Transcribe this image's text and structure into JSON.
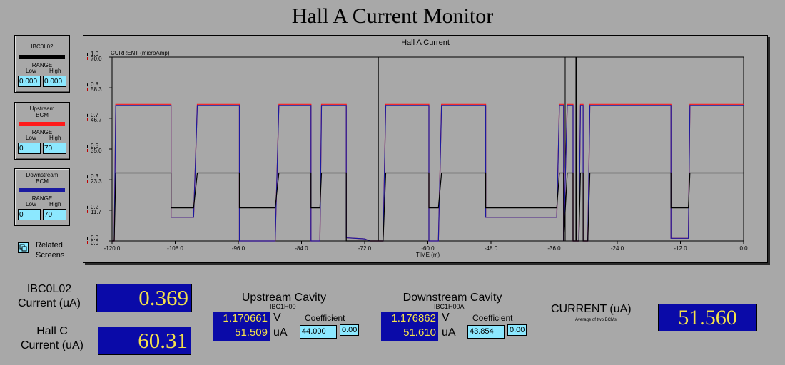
{
  "page": {
    "title": "Hall A Current Monitor"
  },
  "panels": [
    {
      "title1": "IBC0L02",
      "title2": "",
      "color": "#000000",
      "range_label": "RANGE",
      "low_label": "Low",
      "high_label": "High",
      "low": "0.000",
      "high": "0.000"
    },
    {
      "title1": "Upstream",
      "title2": "BCM",
      "color": "#ff1a1a",
      "range_label": "RANGE",
      "low_label": "Low",
      "high_label": "High",
      "low": "0",
      "high": "70"
    },
    {
      "title1": "Downstream",
      "title2": "BCM",
      "color": "#1a1aa0",
      "range_label": "RANGE",
      "low_label": "Low",
      "high_label": "High",
      "low": "0",
      "high": "70"
    }
  ],
  "related": {
    "label1": "Related",
    "label2": "Screens",
    "icon": "related-screens-icon"
  },
  "chart_data": {
    "type": "line",
    "title": "Hall A Current",
    "ylabel": "CURRENT (microAmp)",
    "xlabel": "TIME (m)",
    "xlim": [
      -120,
      0
    ],
    "x_ticks": [
      "-120.0",
      "-108.0",
      "-96.0",
      "-84.0",
      "-72.0",
      "-60.0",
      "-48.0",
      "-36.0",
      "-24.0",
      "-12.0",
      "0.0"
    ],
    "y_ticks_left": [
      "1.0",
      "0.8",
      "0.7",
      "0.5",
      "0.3",
      "0.2",
      "0.0"
    ],
    "y_ticks_right": [
      "70.0",
      "58.3",
      "46.7",
      "35.0",
      "23.3",
      "11.7",
      "0.0"
    ],
    "ylim_left": [
      0,
      1.0
    ],
    "ylim_right": [
      0,
      70
    ],
    "grid": false,
    "series": [
      {
        "color": "#ff1a1a",
        "axis": "right",
        "segments": [
          [
            [
              -120,
              0
            ],
            [
              -119.6,
              0
            ],
            [
              -119.3,
              52
            ],
            [
              -117,
              52
            ],
            [
              -108.8,
              52
            ],
            [
              -108.8,
              9
            ],
            [
              -104.5,
              9
            ],
            [
              -103.8,
              52
            ],
            [
              -95.8,
              52
            ],
            [
              -95.8,
              0
            ],
            [
              -89,
              0
            ],
            [
              -88.3,
              52
            ],
            [
              -82.2,
              52
            ],
            [
              -82.2,
              0
            ],
            [
              -80.5,
              0
            ],
            [
              -80.2,
              52
            ],
            [
              -75.5,
              52
            ],
            [
              -75.5,
              1.2
            ],
            [
              -72,
              0.8
            ],
            [
              -71,
              0
            ],
            [
              -68.5,
              0
            ],
            [
              -68,
              52
            ],
            [
              -59.8,
              52
            ],
            [
              -59.8,
              0
            ],
            [
              -58,
              0
            ],
            [
              -57.4,
              52
            ],
            [
              -49,
              52
            ],
            [
              -49,
              9
            ],
            [
              -35.5,
              9
            ],
            [
              -35,
              52
            ],
            [
              -34.2,
              52
            ],
            [
              -34.2,
              0
            ],
            [
              -33.5,
              52
            ],
            [
              -32.4,
              52
            ],
            [
              -32.4,
              0
            ],
            [
              -31.3,
              0
            ],
            [
              -31,
              52
            ],
            [
              -30.5,
              52
            ],
            [
              -30.5,
              0
            ],
            [
              -29.6,
              0
            ],
            [
              -29.2,
              52
            ],
            [
              -13.8,
              52
            ],
            [
              -13.8,
              1
            ],
            [
              -10.5,
              1
            ],
            [
              -10.2,
              52
            ],
            [
              0,
              52
            ]
          ]
        ]
      },
      {
        "color": "#1a1aa0",
        "axis": "right",
        "segments": [
          [
            [
              -120,
              0
            ],
            [
              -119.6,
              0
            ],
            [
              -119.3,
              51.6
            ],
            [
              -117,
              51.6
            ],
            [
              -108.8,
              51.6
            ],
            [
              -108.8,
              9
            ],
            [
              -104.5,
              9
            ],
            [
              -103.8,
              51.6
            ],
            [
              -95.8,
              51.6
            ],
            [
              -95.8,
              0
            ],
            [
              -89,
              0
            ],
            [
              -88.3,
              51.6
            ],
            [
              -82.2,
              51.6
            ],
            [
              -82.2,
              0
            ],
            [
              -80.5,
              0
            ],
            [
              -80.2,
              51.6
            ],
            [
              -75.5,
              51.6
            ],
            [
              -75.5,
              1.2
            ],
            [
              -72,
              0.8
            ],
            [
              -71,
              0
            ],
            [
              -68.5,
              0
            ],
            [
              -68,
              51.6
            ],
            [
              -59.8,
              51.6
            ],
            [
              -59.8,
              0
            ],
            [
              -58,
              0
            ],
            [
              -57.4,
              51.6
            ],
            [
              -49,
              51.6
            ],
            [
              -49,
              9
            ],
            [
              -35.5,
              9
            ],
            [
              -35,
              51.6
            ],
            [
              -34.2,
              51.6
            ],
            [
              -34.2,
              0
            ],
            [
              -33.5,
              51.6
            ],
            [
              -32.4,
              51.6
            ],
            [
              -32.4,
              0
            ],
            [
              -31.3,
              0
            ],
            [
              -31,
              51.6
            ],
            [
              -30.5,
              51.6
            ],
            [
              -30.5,
              0
            ],
            [
              -29.6,
              0
            ],
            [
              -29.2,
              51.6
            ],
            [
              -13.8,
              51.6
            ],
            [
              -13.8,
              1
            ],
            [
              -10.5,
              1
            ],
            [
              -10.2,
              51.6
            ],
            [
              0,
              51.6
            ]
          ]
        ]
      },
      {
        "color": "#000000",
        "axis": "left",
        "segments": [
          [
            [
              -120,
              0
            ],
            [
              -119.6,
              0
            ],
            [
              -119.3,
              0.37
            ],
            [
              -108.8,
              0.37
            ],
            [
              -108.8,
              0.18
            ],
            [
              -104.5,
              0.18
            ],
            [
              -103.8,
              0.37
            ],
            [
              -95.8,
              0.37
            ],
            [
              -95.8,
              0.18
            ],
            [
              -89,
              0.18
            ],
            [
              -88.3,
              0.37
            ],
            [
              -82.2,
              0.37
            ],
            [
              -82.2,
              0.18
            ],
            [
              -80.5,
              0.18
            ],
            [
              -80.2,
              0.37
            ],
            [
              -75.5,
              0.37
            ],
            [
              -75.5,
              0.0
            ],
            [
              -68.5,
              0.0
            ],
            [
              -68,
              0.37
            ],
            [
              -59.8,
              0.37
            ],
            [
              -59.8,
              0.18
            ],
            [
              -58,
              0.18
            ],
            [
              -57.4,
              0.37
            ],
            [
              -49,
              0.37
            ],
            [
              -49,
              0.18
            ],
            [
              -35.5,
              0.18
            ],
            [
              -35,
              0.37
            ],
            [
              -34.2,
              0.37
            ],
            [
              -34.2,
              0.0
            ],
            [
              -33.5,
              0.37
            ],
            [
              -32.4,
              0.37
            ],
            [
              -32.4,
              0.0
            ],
            [
              -31.3,
              0.0
            ],
            [
              -31,
              0.37
            ],
            [
              -30.5,
              0.37
            ],
            [
              -30.5,
              0.0
            ],
            [
              -29.6,
              0.0
            ],
            [
              -29.2,
              0.37
            ],
            [
              -13.8,
              0.37
            ],
            [
              -13.8,
              0.18
            ],
            [
              -10.5,
              0.18
            ],
            [
              -10.2,
              0.37
            ],
            [
              0,
              0.37
            ]
          ]
        ]
      }
    ],
    "spikes_x": [
      -69.4,
      -33.9,
      -31.8
    ]
  },
  "readouts": {
    "ibc": {
      "label1": "IBC0L02",
      "label2": "Current (uA)",
      "value": "0.369"
    },
    "hallc": {
      "label1": "Hall C",
      "label2": "Current (uA)",
      "value": "60.31"
    },
    "upstream": {
      "title": "Upstream Cavity",
      "sub": "IBC1H00",
      "volts": "1.170661",
      "v_unit": "V",
      "ua": "51.509",
      "ua_unit": "uA",
      "coef_label": "Coefficient",
      "coef": "44.000",
      "offset": "0.00"
    },
    "downstream": {
      "title": "Downstream Cavity",
      "sub": "IBC1H00A",
      "volts": "1.176862",
      "v_unit": "V",
      "ua": "51.610",
      "ua_unit": "uA",
      "coef_label": "Coefficient",
      "coef": "43.854",
      "offset": "0.00"
    },
    "current": {
      "label": "CURRENT (uA)",
      "sub": "Average of two BCMs",
      "value": "51.560"
    }
  }
}
